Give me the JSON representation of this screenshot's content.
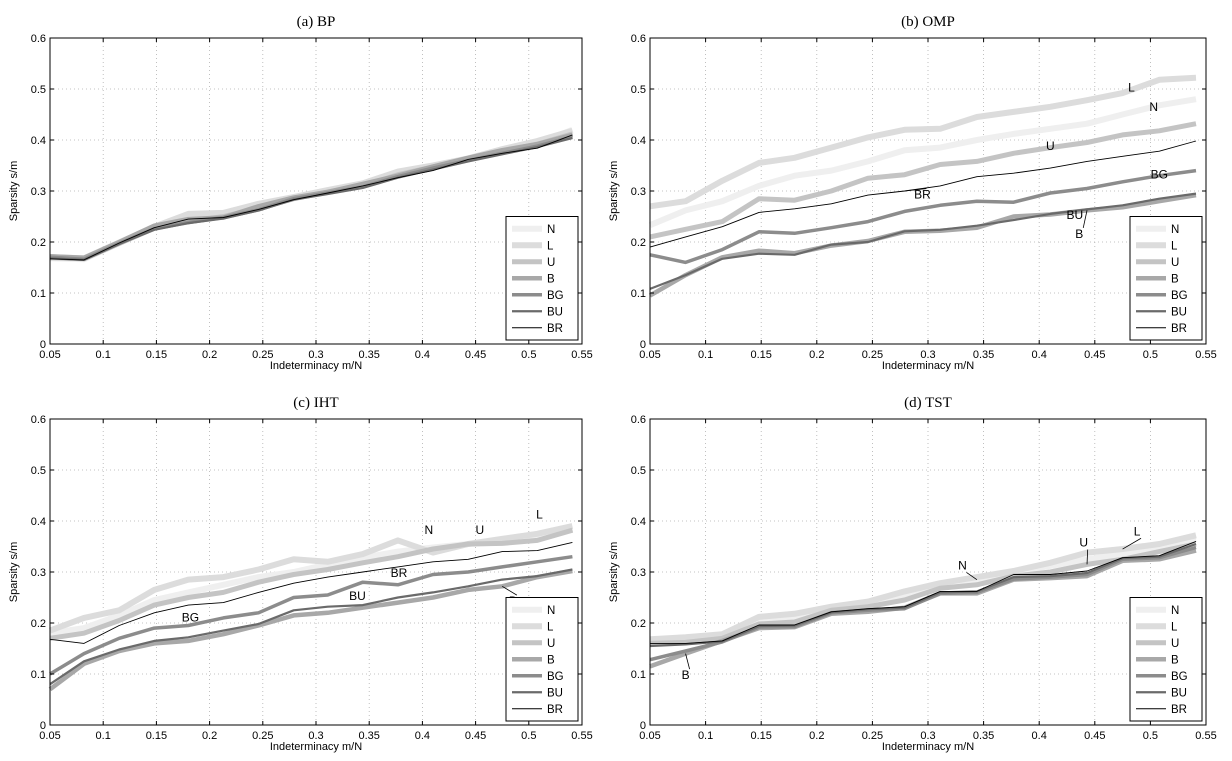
{
  "series_styles": [
    {
      "name": "N",
      "color": "#efefef",
      "width": 6
    },
    {
      "name": "L",
      "color": "#dcdcdc",
      "width": 6
    },
    {
      "name": "U",
      "color": "#c4c4c4",
      "width": 5
    },
    {
      "name": "B",
      "color": "#a8a8a8",
      "width": 4.5
    },
    {
      "name": "BG",
      "color": "#8c8c8c",
      "width": 3.5
    },
    {
      "name": "BU",
      "color": "#6a6a6a",
      "width": 2.2
    },
    {
      "name": "BR",
      "color": "#000000",
      "width": 0.9
    }
  ],
  "chart_data": [
    {
      "type": "line",
      "title": "(a) BP",
      "xlabel": "Indeterminacy m/N",
      "ylabel": "Sparsity s/m",
      "xlim": [
        0.05,
        0.55
      ],
      "ylim": [
        0,
        0.6
      ],
      "xticks": [
        "0.05",
        "0.1",
        "0.15",
        "0.2",
        "0.25",
        "0.3",
        "0.35",
        "0.4",
        "0.45",
        "0.5",
        "0.55"
      ],
      "yticks": [
        "0",
        "0.1",
        "0.2",
        "0.3",
        "0.4",
        "0.5",
        "0.6"
      ],
      "grid": true,
      "legend": "lower-right",
      "x": [
        0.05,
        0.082,
        0.115,
        0.148,
        0.18,
        0.213,
        0.246,
        0.279,
        0.311,
        0.344,
        0.377,
        0.41,
        0.443,
        0.475,
        0.508,
        0.541
      ],
      "series": [
        {
          "name": "N",
          "values": [
            0.168,
            0.166,
            0.198,
            0.23,
            0.243,
            0.252,
            0.268,
            0.287,
            0.3,
            0.312,
            0.33,
            0.346,
            0.362,
            0.378,
            0.393,
            0.42
          ]
        },
        {
          "name": "L",
          "values": [
            0.17,
            0.168,
            0.199,
            0.23,
            0.255,
            0.257,
            0.275,
            0.288,
            0.302,
            0.315,
            0.338,
            0.35,
            0.364,
            0.382,
            0.398,
            0.418
          ]
        },
        {
          "name": "U",
          "values": [
            0.169,
            0.167,
            0.197,
            0.227,
            0.24,
            0.25,
            0.266,
            0.285,
            0.298,
            0.31,
            0.332,
            0.347,
            0.362,
            0.378,
            0.392,
            0.412
          ]
        },
        {
          "name": "B",
          "values": [
            0.172,
            0.169,
            0.2,
            0.232,
            0.245,
            0.248,
            0.27,
            0.287,
            0.298,
            0.314,
            0.33,
            0.348,
            0.365,
            0.38,
            0.392,
            0.41
          ]
        },
        {
          "name": "BG",
          "values": [
            0.17,
            0.166,
            0.197,
            0.226,
            0.238,
            0.248,
            0.263,
            0.285,
            0.296,
            0.308,
            0.328,
            0.345,
            0.36,
            0.374,
            0.388,
            0.406
          ]
        },
        {
          "name": "BU",
          "values": [
            0.168,
            0.165,
            0.196,
            0.224,
            0.237,
            0.246,
            0.262,
            0.283,
            0.294,
            0.306,
            0.326,
            0.342,
            0.358,
            0.372,
            0.386,
            0.404
          ]
        },
        {
          "name": "BR",
          "values": [
            0.167,
            0.165,
            0.198,
            0.228,
            0.245,
            0.248,
            0.264,
            0.283,
            0.296,
            0.31,
            0.326,
            0.34,
            0.362,
            0.374,
            0.384,
            0.41
          ]
        }
      ],
      "annotations": []
    },
    {
      "type": "line",
      "title": "(b) OMP",
      "xlabel": "Indeterminacy m/N",
      "ylabel": "Sparsity s/m",
      "xlim": [
        0.05,
        0.55
      ],
      "ylim": [
        0,
        0.6
      ],
      "xticks": [
        "0.05",
        "0.1",
        "0.15",
        "0.2",
        "0.25",
        "0.3",
        "0.35",
        "0.4",
        "0.45",
        "0.5",
        "0.55"
      ],
      "yticks": [
        "0",
        "0.1",
        "0.2",
        "0.3",
        "0.4",
        "0.5",
        "0.6"
      ],
      "grid": true,
      "legend": "lower-right",
      "x": [
        0.05,
        0.082,
        0.115,
        0.148,
        0.18,
        0.213,
        0.246,
        0.279,
        0.311,
        0.344,
        0.377,
        0.41,
        0.443,
        0.475,
        0.508,
        0.541
      ],
      "series": [
        {
          "name": "N",
          "values": [
            0.233,
            0.262,
            0.28,
            0.31,
            0.33,
            0.34,
            0.358,
            0.38,
            0.385,
            0.4,
            0.412,
            0.422,
            0.432,
            0.45,
            0.468,
            0.48
          ]
        },
        {
          "name": "L",
          "values": [
            0.27,
            0.28,
            0.32,
            0.355,
            0.365,
            0.385,
            0.405,
            0.42,
            0.422,
            0.445,
            0.455,
            0.465,
            0.478,
            0.492,
            0.518,
            0.522
          ]
        },
        {
          "name": "U",
          "values": [
            0.21,
            0.225,
            0.24,
            0.285,
            0.282,
            0.3,
            0.325,
            0.332,
            0.352,
            0.358,
            0.374,
            0.385,
            0.395,
            0.41,
            0.418,
            0.432
          ]
        },
        {
          "name": "B",
          "values": [
            0.095,
            0.135,
            0.17,
            0.183,
            0.178,
            0.193,
            0.202,
            0.22,
            0.222,
            0.228,
            0.25,
            0.254,
            0.262,
            0.268,
            0.28,
            0.292
          ]
        },
        {
          "name": "BG",
          "values": [
            0.175,
            0.16,
            0.185,
            0.22,
            0.217,
            0.228,
            0.24,
            0.26,
            0.272,
            0.28,
            0.278,
            0.296,
            0.305,
            0.318,
            0.33,
            0.34
          ]
        },
        {
          "name": "BU",
          "values": [
            0.108,
            0.135,
            0.167,
            0.177,
            0.175,
            0.195,
            0.2,
            0.221,
            0.224,
            0.232,
            0.243,
            0.255,
            0.264,
            0.272,
            0.285,
            0.295
          ]
        },
        {
          "name": "BR",
          "values": [
            0.19,
            0.21,
            0.23,
            0.258,
            0.265,
            0.275,
            0.292,
            0.3,
            0.31,
            0.328,
            0.335,
            0.345,
            0.358,
            0.368,
            0.378,
            0.398
          ]
        }
      ],
      "annotations": [
        {
          "text": "L",
          "x": 0.483,
          "y": 0.495
        },
        {
          "text": "N",
          "x": 0.503,
          "y": 0.457
        },
        {
          "text": "U",
          "x": 0.41,
          "y": 0.38
        },
        {
          "text": "BR",
          "x": 0.295,
          "y": 0.285
        },
        {
          "text": "BG",
          "x": 0.508,
          "y": 0.325
        },
        {
          "text": "BU",
          "x": 0.432,
          "y": 0.245
        },
        {
          "text": "B",
          "x": 0.436,
          "y": 0.208
        }
      ]
    },
    {
      "type": "line",
      "title": "(c) IHT",
      "xlabel": "Indeterminacy m/N",
      "ylabel": "Sparsity s/m",
      "xlim": [
        0.05,
        0.55
      ],
      "ylim": [
        0,
        0.6
      ],
      "xticks": [
        "0.05",
        "0.1",
        "0.15",
        "0.2",
        "0.25",
        "0.3",
        "0.35",
        "0.4",
        "0.45",
        "0.5",
        "0.55"
      ],
      "yticks": [
        "0",
        "0.1",
        "0.2",
        "0.3",
        "0.4",
        "0.5",
        "0.6"
      ],
      "grid": true,
      "legend": "lower-right",
      "x": [
        0.05,
        0.082,
        0.115,
        0.148,
        0.18,
        0.213,
        0.246,
        0.279,
        0.311,
        0.344,
        0.377,
        0.41,
        0.443,
        0.475,
        0.508,
        0.541
      ],
      "series": [
        {
          "name": "N",
          "values": [
            0.18,
            0.19,
            0.215,
            0.245,
            0.26,
            0.275,
            0.29,
            0.3,
            0.315,
            0.328,
            0.34,
            0.348,
            0.355,
            0.358,
            0.368,
            0.385
          ]
        },
        {
          "name": "L",
          "values": [
            0.185,
            0.21,
            0.225,
            0.265,
            0.285,
            0.29,
            0.305,
            0.325,
            0.32,
            0.335,
            0.362,
            0.338,
            0.355,
            0.365,
            0.375,
            0.39
          ]
        },
        {
          "name": "U",
          "values": [
            0.17,
            0.18,
            0.205,
            0.235,
            0.25,
            0.26,
            0.28,
            0.295,
            0.305,
            0.318,
            0.33,
            0.345,
            0.355,
            0.356,
            0.362,
            0.382
          ]
        },
        {
          "name": "B",
          "values": [
            0.07,
            0.12,
            0.145,
            0.16,
            0.165,
            0.178,
            0.195,
            0.215,
            0.22,
            0.23,
            0.24,
            0.25,
            0.265,
            0.272,
            0.29,
            0.302
          ]
        },
        {
          "name": "BG",
          "values": [
            0.1,
            0.14,
            0.17,
            0.19,
            0.195,
            0.21,
            0.22,
            0.25,
            0.255,
            0.28,
            0.275,
            0.295,
            0.3,
            0.31,
            0.32,
            0.33
          ]
        },
        {
          "name": "BU",
          "values": [
            0.08,
            0.125,
            0.148,
            0.165,
            0.172,
            0.185,
            0.198,
            0.225,
            0.232,
            0.235,
            0.25,
            0.26,
            0.272,
            0.285,
            0.292,
            0.305
          ]
        },
        {
          "name": "BR",
          "values": [
            0.168,
            0.16,
            0.195,
            0.22,
            0.235,
            0.24,
            0.26,
            0.278,
            0.29,
            0.3,
            0.31,
            0.32,
            0.325,
            0.34,
            0.342,
            0.358
          ]
        }
      ],
      "annotations": [
        {
          "text": "N",
          "x": 0.406,
          "y": 0.375
        },
        {
          "text": "U",
          "x": 0.454,
          "y": 0.375
        },
        {
          "text": "L",
          "x": 0.51,
          "y": 0.405
        },
        {
          "text": "BR",
          "x": 0.378,
          "y": 0.29
        },
        {
          "text": "BU",
          "x": 0.339,
          "y": 0.245
        },
        {
          "text": "BG",
          "x": 0.182,
          "y": 0.203
        },
        {
          "text": "B",
          "x": 0.485,
          "y": 0.235
        }
      ]
    },
    {
      "type": "line",
      "title": "(d) TST",
      "xlabel": "Indeterminacy m/N",
      "ylabel": "Sparsity s/m",
      "xlim": [
        0.05,
        0.55
      ],
      "ylim": [
        0,
        0.6
      ],
      "xticks": [
        "0.05",
        "0.1",
        "0.15",
        "0.2",
        "0.25",
        "0.3",
        "0.35",
        "0.4",
        "0.45",
        "0.5",
        "0.55"
      ],
      "yticks": [
        "0",
        "0.1",
        "0.2",
        "0.3",
        "0.4",
        "0.5",
        "0.6"
      ],
      "grid": true,
      "legend": "lower-right",
      "x": [
        0.05,
        0.082,
        0.115,
        0.148,
        0.18,
        0.213,
        0.246,
        0.279,
        0.311,
        0.344,
        0.377,
        0.41,
        0.443,
        0.475,
        0.508,
        0.541
      ],
      "series": [
        {
          "name": "N",
          "values": [
            0.165,
            0.168,
            0.175,
            0.205,
            0.21,
            0.228,
            0.238,
            0.255,
            0.275,
            0.285,
            0.3,
            0.312,
            0.325,
            0.335,
            0.35,
            0.365
          ]
        },
        {
          "name": "L",
          "values": [
            0.168,
            0.172,
            0.178,
            0.212,
            0.218,
            0.232,
            0.242,
            0.262,
            0.278,
            0.29,
            0.302,
            0.318,
            0.338,
            0.345,
            0.355,
            0.372
          ]
        },
        {
          "name": "U",
          "values": [
            0.16,
            0.162,
            0.17,
            0.198,
            0.202,
            0.225,
            0.232,
            0.245,
            0.268,
            0.275,
            0.292,
            0.3,
            0.315,
            0.325,
            0.34,
            0.355
          ]
        },
        {
          "name": "B",
          "values": [
            0.115,
            0.14,
            0.165,
            0.19,
            0.192,
            0.218,
            0.222,
            0.23,
            0.258,
            0.258,
            0.285,
            0.288,
            0.292,
            0.322,
            0.325,
            0.342
          ]
        },
        {
          "name": "BG",
          "values": [
            0.128,
            0.145,
            0.163,
            0.192,
            0.193,
            0.22,
            0.225,
            0.228,
            0.258,
            0.26,
            0.286,
            0.29,
            0.295,
            0.325,
            0.328,
            0.348
          ]
        },
        {
          "name": "BU",
          "values": [
            0.155,
            0.158,
            0.164,
            0.194,
            0.195,
            0.221,
            0.227,
            0.23,
            0.26,
            0.262,
            0.29,
            0.292,
            0.298,
            0.327,
            0.33,
            0.355
          ]
        },
        {
          "name": "BR",
          "values": [
            0.16,
            0.16,
            0.165,
            0.196,
            0.196,
            0.222,
            0.228,
            0.232,
            0.262,
            0.262,
            0.295,
            0.295,
            0.302,
            0.328,
            0.332,
            0.36
          ]
        }
      ],
      "annotations": [
        {
          "text": "N",
          "x": 0.331,
          "y": 0.305
        },
        {
          "text": "U",
          "x": 0.44,
          "y": 0.35
        },
        {
          "text": "L",
          "x": 0.488,
          "y": 0.372
        },
        {
          "text": "B",
          "x": 0.082,
          "y": 0.09
        }
      ]
    }
  ]
}
